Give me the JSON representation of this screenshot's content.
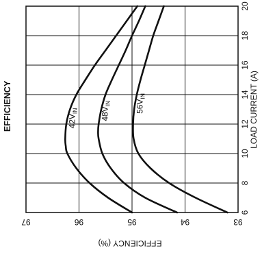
{
  "chart_data": {
    "type": "line",
    "title": "EFFICIENCY",
    "xlabel": "LOAD CURRENT (A)",
    "ylabel": "EFFICIENCY (%)",
    "xlim": [
      6,
      20
    ],
    "ylim": [
      93,
      97
    ],
    "x_ticks": [
      "6",
      "8",
      "10",
      "12",
      "14",
      "16",
      "18",
      "20"
    ],
    "y_ticks": [
      "93",
      "94",
      "95",
      "96",
      "97"
    ],
    "grid": true,
    "orientation": "rotated 90° clockwise (load current axis vertical on right, efficiency axis horizontal at bottom, reversed)",
    "series": [
      {
        "name": "42V",
        "name_subscript": "IN",
        "x": [
          6,
          7,
          8,
          9,
          10,
          10.5,
          11,
          12,
          13,
          14,
          15,
          16,
          17,
          18,
          19,
          20
        ],
        "y": [
          95.0,
          95.45,
          95.8,
          96.05,
          96.22,
          96.25,
          96.26,
          96.24,
          96.17,
          96.05,
          95.88,
          95.7,
          95.5,
          95.3,
          95.1,
          94.9
        ]
      },
      {
        "name": "48V",
        "name_subscript": "IN",
        "x": [
          6,
          7,
          8,
          9,
          10,
          11,
          11.5,
          12,
          13,
          14,
          15,
          16,
          17,
          18,
          19,
          20
        ],
        "y": [
          94.15,
          94.75,
          95.15,
          95.4,
          95.56,
          95.63,
          95.64,
          95.63,
          95.58,
          95.5,
          95.38,
          95.25,
          95.12,
          95.0,
          94.87,
          94.75
        ]
      },
      {
        "name": "56V",
        "name_subscript": "IN",
        "x": [
          6,
          7,
          8,
          9,
          10,
          11,
          12,
          13,
          14,
          15,
          16,
          17,
          18,
          19,
          20
        ],
        "y": [
          93.2,
          93.8,
          94.3,
          94.65,
          94.88,
          94.97,
          94.98,
          94.96,
          94.91,
          94.84,
          94.76,
          94.68,
          94.6,
          94.5,
          94.4
        ]
      }
    ]
  }
}
